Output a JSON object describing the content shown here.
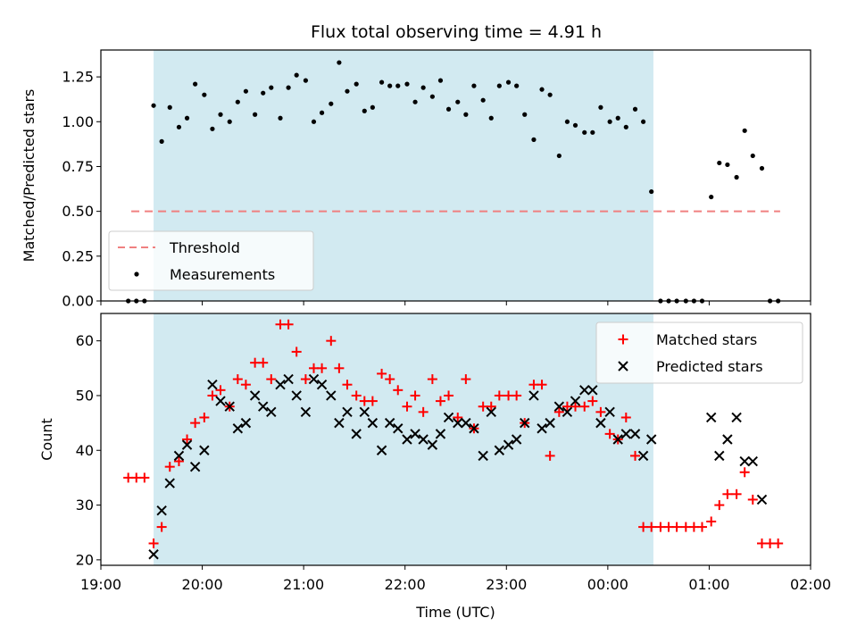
{
  "title": "Flux total observing time = 4.91 h",
  "colors": {
    "shade": "#add8e6",
    "threshold": "#f08080",
    "matched": "#ff0000",
    "predicted": "#000000",
    "measurement": "#000000"
  },
  "chart_data": [
    {
      "type": "scatter",
      "panel": "top",
      "ylabel": "Matched/Predicted stars",
      "ylim": [
        0,
        1.4
      ],
      "yticks": [
        0.0,
        0.25,
        0.5,
        0.75,
        1.0,
        1.25
      ],
      "ytick_labels": [
        "0.00",
        "0.25",
        "0.50",
        "0.75",
        "1.00",
        "1.25"
      ],
      "xlim": [
        19.0,
        26.0
      ],
      "shaded_x_range": [
        19.52,
        24.45
      ],
      "legend": {
        "placement": "lower-left",
        "entries": [
          "Threshold",
          "Measurements"
        ]
      },
      "series": [
        {
          "name": "Threshold",
          "style": "dashed-line",
          "x": [
            19.3,
            25.7
          ],
          "y": [
            0.5,
            0.5
          ]
        },
        {
          "name": "Measurements",
          "style": "dots",
          "x": [
            19.27,
            19.35,
            19.43,
            19.52,
            19.6,
            19.68,
            19.77,
            19.85,
            19.93,
            20.02,
            20.1,
            20.18,
            20.27,
            20.35,
            20.43,
            20.52,
            20.6,
            20.68,
            20.77,
            20.85,
            20.93,
            21.02,
            21.1,
            21.18,
            21.27,
            21.35,
            21.43,
            21.52,
            21.6,
            21.68,
            21.77,
            21.85,
            21.93,
            22.02,
            22.1,
            22.18,
            22.27,
            22.35,
            22.43,
            22.52,
            22.6,
            22.68,
            22.77,
            22.85,
            22.93,
            23.02,
            23.1,
            23.18,
            23.27,
            23.35,
            23.43,
            23.52,
            23.6,
            23.68,
            23.77,
            23.85,
            23.93,
            24.02,
            24.1,
            24.18,
            24.27,
            24.35,
            24.43,
            24.52,
            24.6,
            24.68,
            24.77,
            24.85,
            24.93,
            25.02,
            25.1,
            25.18,
            25.27,
            25.35,
            25.43,
            25.52,
            25.6,
            25.68
          ],
          "y": [
            0,
            0,
            0,
            1.09,
            0.89,
            1.08,
            0.97,
            1.02,
            1.21,
            1.15,
            0.96,
            1.04,
            1.0,
            1.11,
            1.17,
            1.04,
            1.16,
            1.19,
            1.02,
            1.19,
            1.26,
            1.23,
            1.0,
            1.05,
            1.1,
            1.33,
            1.17,
            1.21,
            1.06,
            1.08,
            1.22,
            1.2,
            1.2,
            1.21,
            1.11,
            1.19,
            1.14,
            1.23,
            1.07,
            1.11,
            1.04,
            1.2,
            1.12,
            1.02,
            1.2,
            1.22,
            1.2,
            1.04,
            0.9,
            1.18,
            1.15,
            0.81,
            1.0,
            0.98,
            0.94,
            0.94,
            1.08,
            1.0,
            1.02,
            0.97,
            1.07,
            1.0,
            0.61,
            0,
            0,
            0,
            0,
            0,
            0,
            0.58,
            0.77,
            0.76,
            0.69,
            0.95,
            0.81,
            0.74,
            0,
            0
          ]
        }
      ]
    },
    {
      "type": "scatter",
      "panel": "bottom",
      "xlabel": "Time (UTC)",
      "ylabel": "Count",
      "ylim": [
        19,
        65
      ],
      "yticks": [
        20,
        30,
        40,
        50,
        60
      ],
      "ytick_labels": [
        "20",
        "30",
        "40",
        "50",
        "60"
      ],
      "xlim": [
        19.0,
        26.0
      ],
      "xticks": [
        19,
        20,
        21,
        22,
        23,
        24,
        25,
        26
      ],
      "xtick_labels": [
        "19:00",
        "20:00",
        "21:00",
        "22:00",
        "23:00",
        "00:00",
        "01:00",
        "02:00"
      ],
      "shaded_x_range": [
        19.52,
        24.45
      ],
      "legend": {
        "placement": "upper-right",
        "entries": [
          "Matched stars",
          "Predicted stars"
        ]
      },
      "series": [
        {
          "name": "Matched stars",
          "marker": "+",
          "x": [
            19.27,
            19.35,
            19.43,
            19.52,
            19.6,
            19.68,
            19.77,
            19.85,
            19.93,
            20.02,
            20.1,
            20.18,
            20.27,
            20.35,
            20.43,
            20.52,
            20.6,
            20.68,
            20.77,
            20.85,
            20.93,
            21.02,
            21.1,
            21.18,
            21.27,
            21.35,
            21.43,
            21.52,
            21.6,
            21.68,
            21.77,
            21.85,
            21.93,
            22.02,
            22.1,
            22.18,
            22.27,
            22.35,
            22.43,
            22.52,
            22.6,
            22.68,
            22.77,
            22.85,
            22.93,
            23.02,
            23.1,
            23.18,
            23.27,
            23.35,
            23.43,
            23.52,
            23.6,
            23.68,
            23.77,
            23.85,
            23.93,
            24.02,
            24.1,
            24.18,
            24.27,
            24.35,
            24.43,
            24.52,
            24.6,
            24.68,
            24.77,
            24.85,
            24.93,
            25.02,
            25.1,
            25.18,
            25.27,
            25.35,
            25.43,
            25.52,
            25.6,
            25.68
          ],
          "y": [
            35,
            35,
            35,
            23,
            26,
            37,
            38,
            42,
            45,
            46,
            50,
            51,
            48,
            53,
            52,
            56,
            56,
            53,
            63,
            63,
            58,
            53,
            55,
            55,
            60,
            55,
            52,
            50,
            49,
            49,
            54,
            53,
            51,
            48,
            50,
            47,
            53,
            49,
            50,
            46,
            53,
            44,
            48,
            48,
            50,
            50,
            50,
            45,
            52,
            52,
            39,
            47,
            48,
            48,
            48,
            49,
            47,
            43,
            42,
            46,
            39,
            26,
            26,
            26,
            26,
            26,
            26,
            26,
            26,
            27,
            30,
            32,
            32,
            36,
            31,
            23,
            23,
            23
          ]
        },
        {
          "name": "Predicted stars",
          "marker": "x",
          "x": [
            19.52,
            19.6,
            19.68,
            19.77,
            19.85,
            19.93,
            20.02,
            20.1,
            20.18,
            20.27,
            20.35,
            20.43,
            20.52,
            20.6,
            20.68,
            20.77,
            20.85,
            20.93,
            21.02,
            21.1,
            21.18,
            21.27,
            21.35,
            21.43,
            21.52,
            21.6,
            21.68,
            21.77,
            21.85,
            21.93,
            22.02,
            22.1,
            22.18,
            22.27,
            22.35,
            22.43,
            22.52,
            22.6,
            22.68,
            22.77,
            22.85,
            22.93,
            23.02,
            23.1,
            23.18,
            23.27,
            23.35,
            23.43,
            23.52,
            23.6,
            23.68,
            23.77,
            23.85,
            23.93,
            24.02,
            24.1,
            24.18,
            24.27,
            24.35,
            24.43,
            25.02,
            25.1,
            25.18,
            25.27,
            25.35,
            25.43,
            25.52
          ],
          "y": [
            21,
            29,
            34,
            39,
            41,
            37,
            40,
            52,
            49,
            48,
            44,
            45,
            50,
            48,
            47,
            52,
            53,
            50,
            47,
            53,
            52,
            50,
            45,
            47,
            43,
            47,
            45,
            40,
            45,
            44,
            42,
            43,
            42,
            41,
            43,
            46,
            45,
            45,
            44,
            39,
            47,
            40,
            41,
            42,
            45,
            50,
            44,
            45,
            48,
            47,
            49,
            51,
            51,
            45,
            47,
            42,
            43,
            43,
            39,
            42,
            46,
            39,
            42,
            46,
            38,
            38,
            31
          ]
        }
      ]
    }
  ]
}
